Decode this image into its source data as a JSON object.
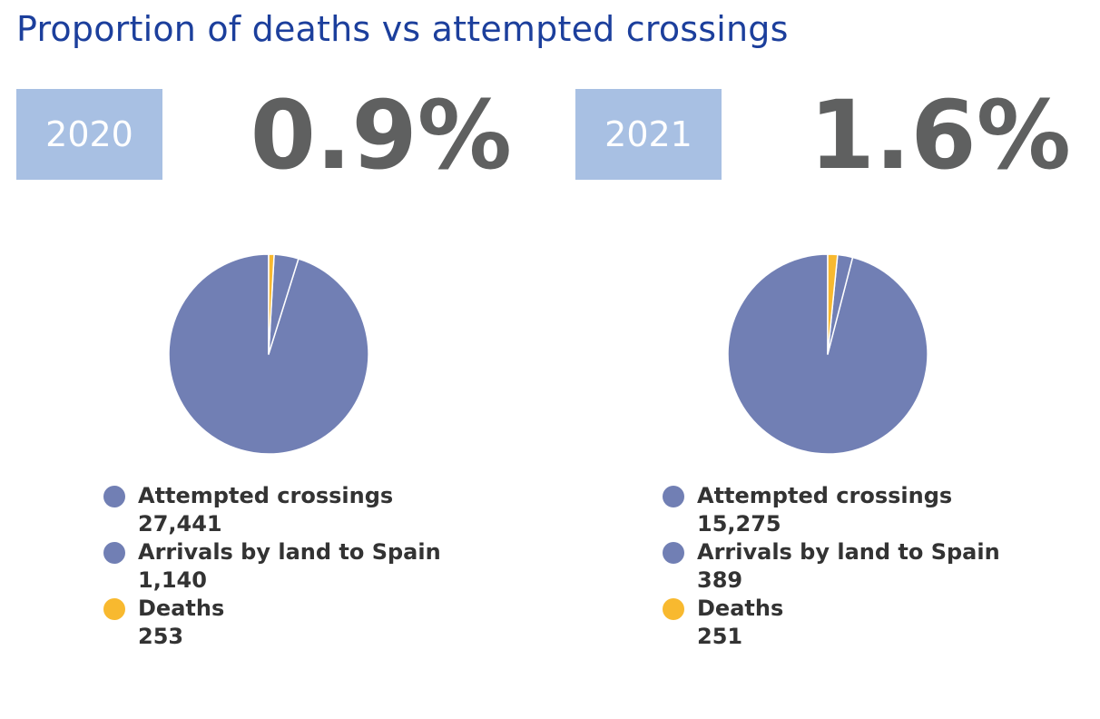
{
  "title": "Proportion of deaths vs attempted crossings",
  "colors": {
    "attempted": "#717fb4",
    "arrivals": "#717fb4",
    "deaths": "#f8b92f"
  },
  "panels": [
    {
      "year": "2020",
      "percent": "0.9%",
      "legend": [
        {
          "label": "Attempted crossings",
          "value": "27,441"
        },
        {
          "label": "Arrivals by land to Spain",
          "value": "1,140"
        },
        {
          "label": "Deaths",
          "value": "253"
        }
      ]
    },
    {
      "year": "2021",
      "percent": "1.6%",
      "legend": [
        {
          "label": "Attempted crossings",
          "value": "15,275"
        },
        {
          "label": "Arrivals by land to Spain",
          "value": "389"
        },
        {
          "label": "Deaths",
          "value": "251"
        }
      ]
    }
  ],
  "chart_data": [
    {
      "type": "pie",
      "categories": [
        "Attempted crossings",
        "Arrivals by land to Spain",
        "Deaths"
      ],
      "values": [
        27441,
        1140,
        253
      ],
      "colors": [
        "#717fb4",
        "#717fb4",
        "#f8b92f"
      ]
    },
    {
      "type": "pie",
      "categories": [
        "Attempted crossings",
        "Arrivals by land to Spain",
        "Deaths"
      ],
      "values": [
        15275,
        389,
        251
      ],
      "colors": [
        "#717fb4",
        "#717fb4",
        "#f8b92f"
      ]
    }
  ]
}
